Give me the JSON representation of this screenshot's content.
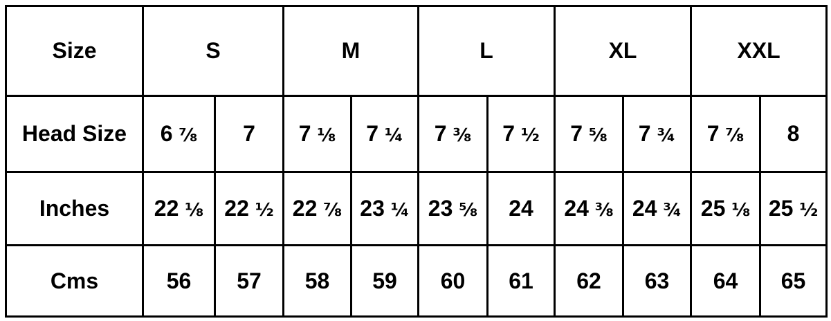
{
  "header": {
    "label": "Size",
    "sizes": [
      "S",
      "M",
      "L",
      "XL",
      "XXL"
    ]
  },
  "rows": [
    {
      "label": "Head Size",
      "values": [
        "6 ⅞",
        "7",
        "7 ⅛",
        "7 ¼",
        "7 ⅜",
        "7 ½",
        "7 ⅝",
        "7 ¾",
        "7 ⅞",
        "8"
      ]
    },
    {
      "label": "Inches",
      "values": [
        "22 ⅛",
        "22 ½",
        "22 ⅞",
        "23 ¼",
        "23 ⅝",
        "24",
        "24 ⅜",
        "24 ¾",
        "25 ⅛",
        "25 ½"
      ]
    },
    {
      "label": "Cms",
      "values": [
        "56",
        "57",
        "58",
        "59",
        "60",
        "61",
        "62",
        "63",
        "64",
        "65"
      ]
    }
  ]
}
